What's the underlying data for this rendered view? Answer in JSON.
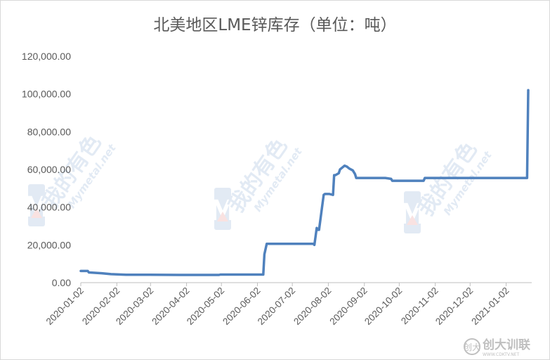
{
  "chart_data": {
    "type": "line",
    "title": "北美地区LME锌库存（单位：吨）",
    "xlabel": "",
    "ylabel": "",
    "ylim": [
      0,
      120000
    ],
    "y_ticks": [
      "0.00",
      "20,000.00",
      "40,000.00",
      "60,000.00",
      "80,000.00",
      "100,000.00",
      "120,000.00"
    ],
    "x_ticks": [
      "2020-01-02",
      "2020-02-02",
      "2020-03-02",
      "2020-04-02",
      "2020-05-02",
      "2020-06-02",
      "2020-07-02",
      "2020-08-02",
      "2020-09-02",
      "2020-10-02",
      "2020-11-02",
      "2020-12-02",
      "2021-01-02"
    ],
    "grid": false,
    "legend": "none",
    "line_color": "#4f81bd",
    "series": [
      {
        "x": [
          "2020-01-02",
          "2020-01-08",
          "2020-01-09",
          "2020-01-20",
          "2020-01-28",
          "2020-02-10",
          "2020-03-01",
          "2020-04-01",
          "2020-04-30",
          "2020-05-01",
          "2020-06-07",
          "2020-06-08",
          "2020-06-10",
          "2020-06-30",
          "2020-07-20",
          "2020-07-21",
          "2020-07-23",
          "2020-07-24",
          "2020-07-25",
          "2020-07-29",
          "2020-07-30",
          "2020-08-03",
          "2020-08-06",
          "2020-08-07",
          "2020-08-08",
          "2020-08-11",
          "2020-08-12",
          "2020-08-14",
          "2020-08-16",
          "2020-08-18",
          "2020-08-20",
          "2020-08-23",
          "2020-08-25",
          "2020-08-26",
          "2020-09-10",
          "2020-09-20",
          "2020-09-25",
          "2020-09-26",
          "2020-10-10",
          "2020-10-23",
          "2020-10-24",
          "2020-11-10",
          "2020-12-10",
          "2021-01-10",
          "2021-01-20",
          "2021-01-21"
        ],
        "y": [
          6200,
          6200,
          5400,
          5000,
          4500,
          4200,
          4200,
          4100,
          4100,
          4300,
          4300,
          15000,
          20600,
          20600,
          20600,
          20000,
          29000,
          28000,
          28000,
          46500,
          47000,
          47000,
          46500,
          57000,
          57000,
          58000,
          60000,
          61000,
          62000,
          61500,
          60500,
          59500,
          57500,
          55500,
          55500,
          55500,
          55000,
          54000,
          54000,
          54000,
          55500,
          55500,
          55500,
          55500,
          55500,
          102000
        ]
      }
    ]
  },
  "watermark": {
    "logo_text": "我的有色",
    "site_text": "Mymetal.net",
    "logo_letter": "M"
  },
  "corner_logo": {
    "glyph": "创大",
    "main": "创大训联",
    "sub": "WWW.CDKTV.NET"
  }
}
